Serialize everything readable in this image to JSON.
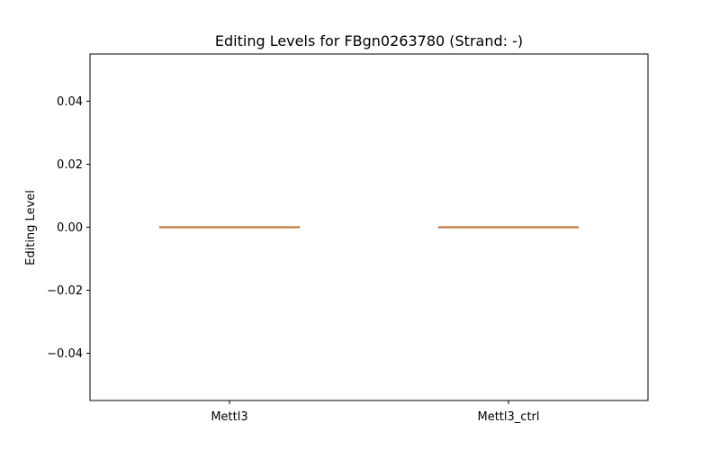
{
  "chart_data": {
    "type": "box",
    "title": "Editing Levels for FBgn0263780 (Strand: -)",
    "xlabel": "",
    "ylabel": "Editing Level",
    "categories": [
      "Mettl3",
      "Mettl3_ctrl"
    ],
    "boxes": [
      {
        "name": "Mettl3",
        "min": 0.0,
        "q1": 0.0,
        "median": 0.0,
        "q3": 0.0,
        "max": 0.0
      },
      {
        "name": "Mettl3_ctrl",
        "min": 0.0,
        "q1": 0.0,
        "median": 0.0,
        "q3": 0.0,
        "max": 0.0
      }
    ],
    "ylim": [
      -0.055,
      0.055
    ],
    "yticks": [
      -0.04,
      -0.02,
      0.0,
      0.02,
      0.04
    ],
    "ytick_labels": [
      "−0.04",
      "−0.02",
      "0.00",
      "0.02",
      "0.04"
    ],
    "grid": false,
    "colors": {
      "box_fill": "#c98b5a",
      "box_edge": "#8b5a36",
      "median": "#d9823b",
      "axes": "#000000"
    }
  }
}
